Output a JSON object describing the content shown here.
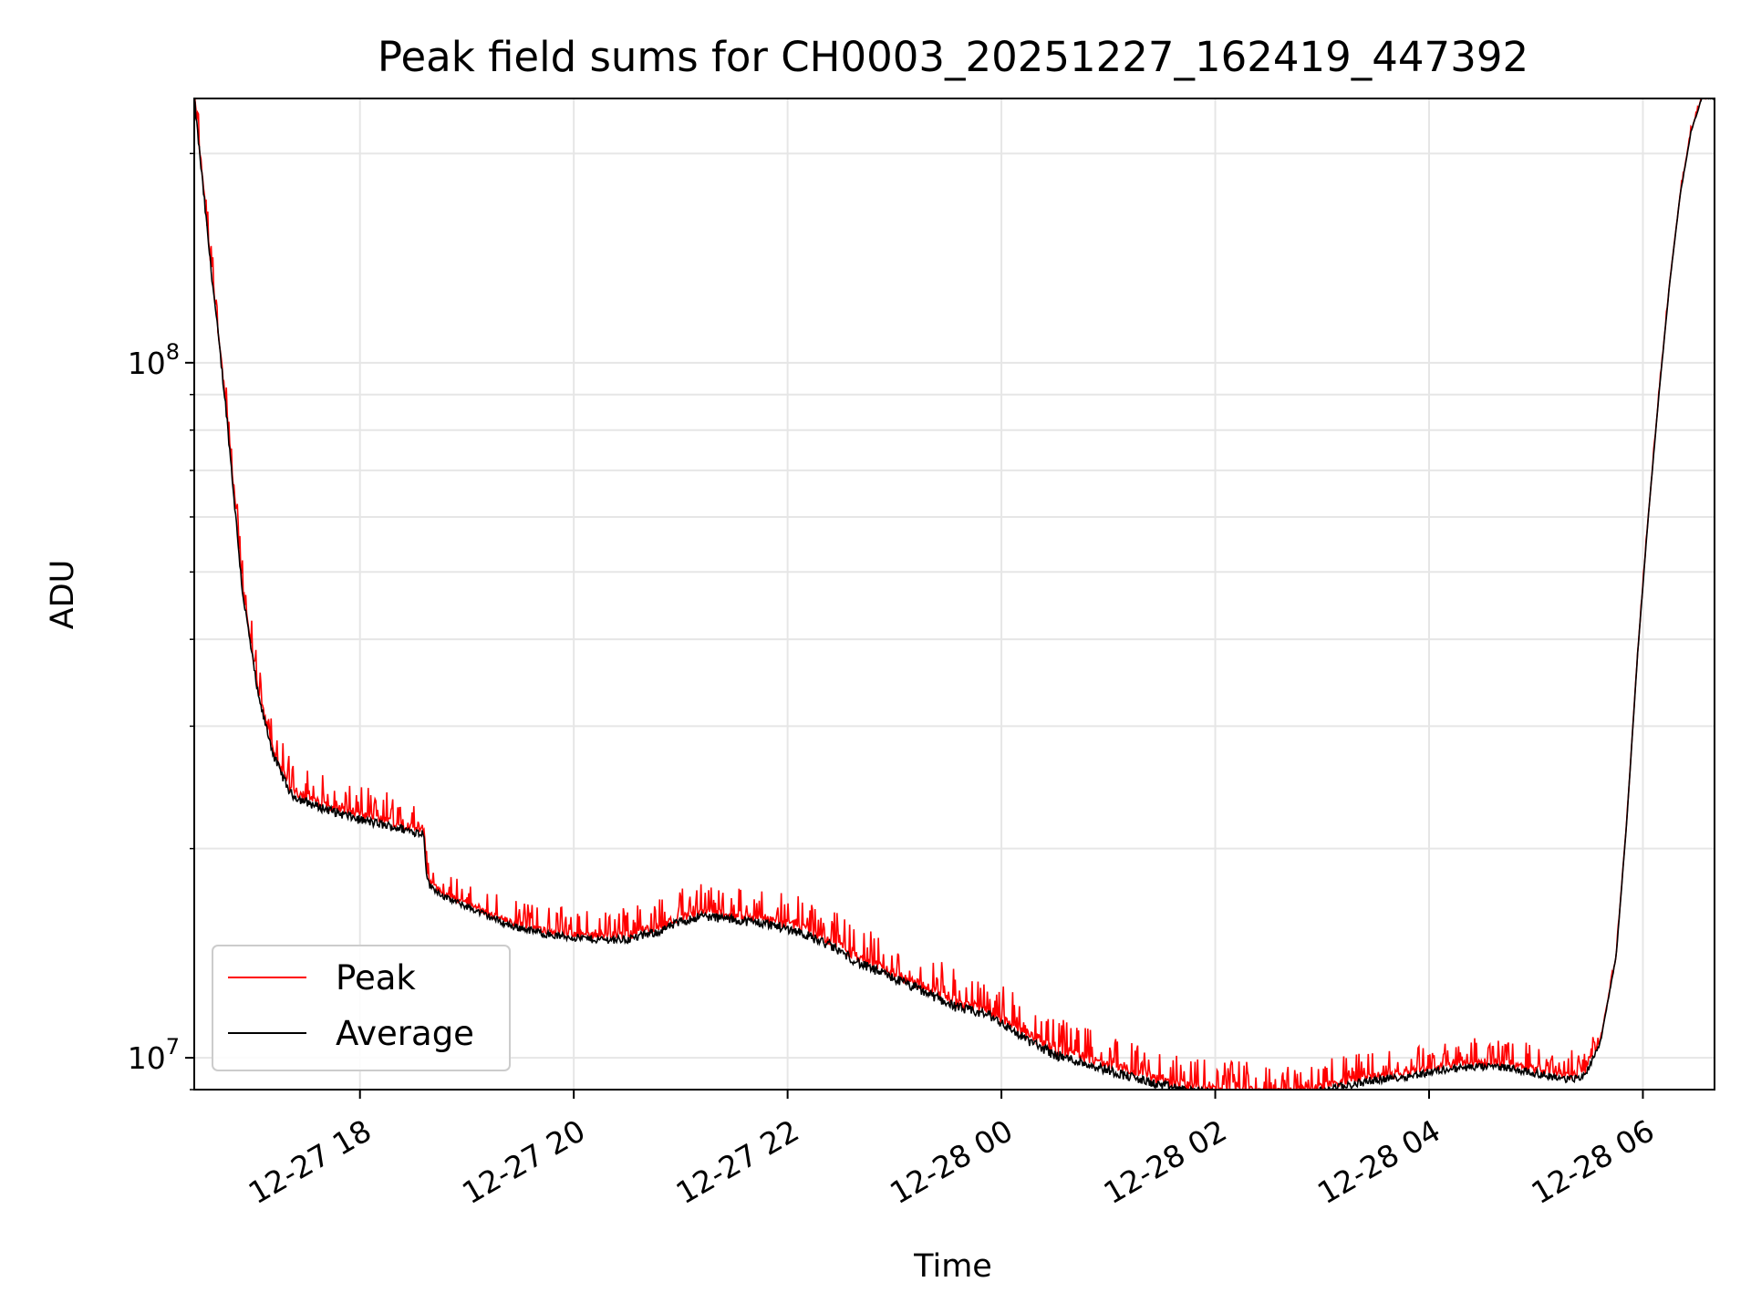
{
  "chart_data": {
    "type": "line",
    "title": "Peak field sums for CH0003_20251227_162419_447392",
    "xlabel": "Time",
    "ylabel": "ADU",
    "yscale": "log",
    "ylim": [
      9000000,
      240000000
    ],
    "xlim_hours": [
      16.45,
      30.67
    ],
    "x_ticks": [
      {
        "hours": 18,
        "label": "12-27 18"
      },
      {
        "hours": 20,
        "label": "12-27 20"
      },
      {
        "hours": 22,
        "label": "12-27 22"
      },
      {
        "hours": 24,
        "label": "12-28 00"
      },
      {
        "hours": 26,
        "label": "12-28 02"
      },
      {
        "hours": 28,
        "label": "12-28 04"
      },
      {
        "hours": 30,
        "label": "12-28 06"
      }
    ],
    "y_ticks": [
      {
        "value": 10000000,
        "base": "10",
        "exp": "7"
      },
      {
        "value": 100000000,
        "base": "10",
        "exp": "8"
      }
    ],
    "legend": {
      "position": "lower-left",
      "entries": [
        "Peak",
        "Average"
      ]
    },
    "series": [
      {
        "name": "Average",
        "color": "#000000",
        "x_hours": [
          16.45,
          16.6,
          16.75,
          16.9,
          17.05,
          17.2,
          17.35,
          17.45,
          17.6,
          17.8,
          18.0,
          18.3,
          18.6,
          18.62,
          18.65,
          18.8,
          19.0,
          19.4,
          19.8,
          20.2,
          20.5,
          20.8,
          21.0,
          21.2,
          21.5,
          21.8,
          22.1,
          22.4,
          22.7,
          23.0,
          23.3,
          23.6,
          23.9,
          24.2,
          24.5,
          24.8,
          25.1,
          25.4,
          25.7,
          26.0,
          26.3,
          26.6,
          26.9,
          27.2,
          27.5,
          27.8,
          28.1,
          28.4,
          28.7,
          29.0,
          29.3,
          29.45,
          29.6,
          29.75,
          29.85,
          29.95,
          30.05,
          30.15,
          30.25,
          30.35,
          30.45,
          30.55,
          30.67
        ],
        "values": [
          240000000,
          140000000,
          85000000,
          47000000,
          33000000,
          27000000,
          24000000,
          23500000,
          23000000,
          22500000,
          22000000,
          21500000,
          21000000,
          18500000,
          17700000,
          17000000,
          16500000,
          15500000,
          15000000,
          14800000,
          14800000,
          15200000,
          15700000,
          16000000,
          15800000,
          15600000,
          15200000,
          14500000,
          13600000,
          13000000,
          12400000,
          11800000,
          11500000,
          10700000,
          10100000,
          9800000,
          9500000,
          9200000,
          9000000,
          8900000,
          8850000,
          8800000,
          8900000,
          9100000,
          9300000,
          9400000,
          9600000,
          9700000,
          9700000,
          9500000,
          9300000,
          9400000,
          10500000,
          14000000,
          22000000,
          38000000,
          60000000,
          90000000,
          130000000,
          175000000,
          215000000,
          240000000,
          240000000
        ]
      },
      {
        "name": "Peak",
        "color": "#ff0000",
        "note": "follows average with positive noise spikes",
        "spike_profile_hours": [
          17.4,
          18.6,
          18.65,
          21.0,
          23.5,
          25.0,
          28.0,
          29.45,
          29.7
        ],
        "spike_fraction": [
          0.12,
          0.12,
          0.08,
          0.12,
          0.14,
          0.13,
          0.1,
          0.1,
          0.02
        ]
      }
    ]
  }
}
